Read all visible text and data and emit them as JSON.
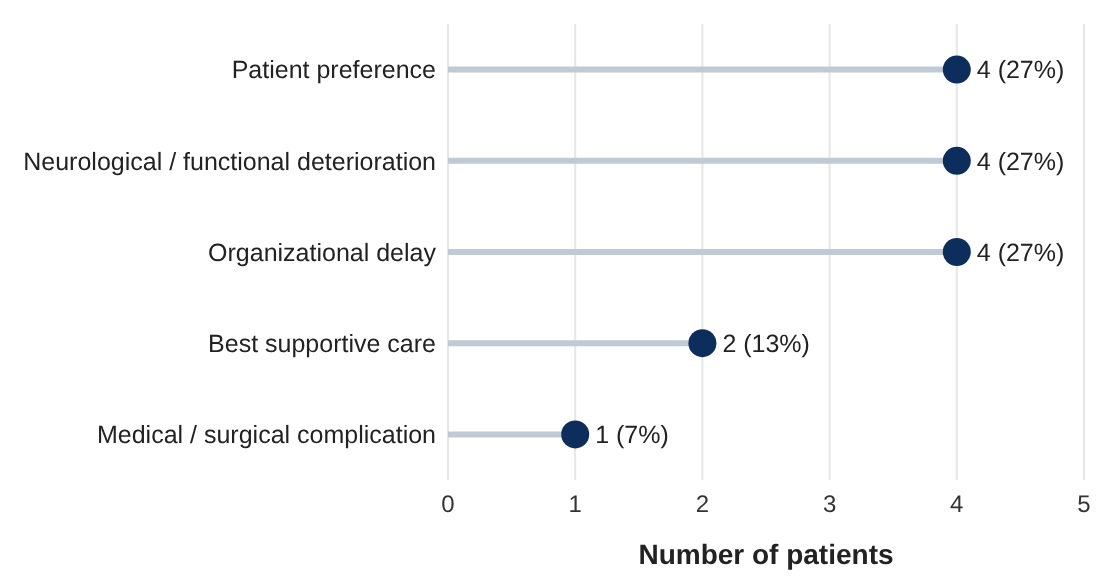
{
  "chart_data": {
    "type": "lollipop",
    "orientation": "horizontal",
    "xlabel": "Number of patients",
    "categories": [
      "Patient preference",
      "Neurological / functional deterioration",
      "Organizational delay",
      "Best supportive care",
      "Medical / surgical complication"
    ],
    "values": [
      4,
      4,
      4,
      2,
      1
    ],
    "value_labels": [
      "4 (27%)",
      "4 (27%)",
      "4 (27%)",
      "2 (13%)",
      "1 (7%)"
    ],
    "color": "#0d2e5c",
    "xlim": [
      0,
      5
    ],
    "xticks": [
      0,
      1,
      2,
      3,
      4,
      5
    ],
    "grid": "x",
    "marker": "circle"
  }
}
